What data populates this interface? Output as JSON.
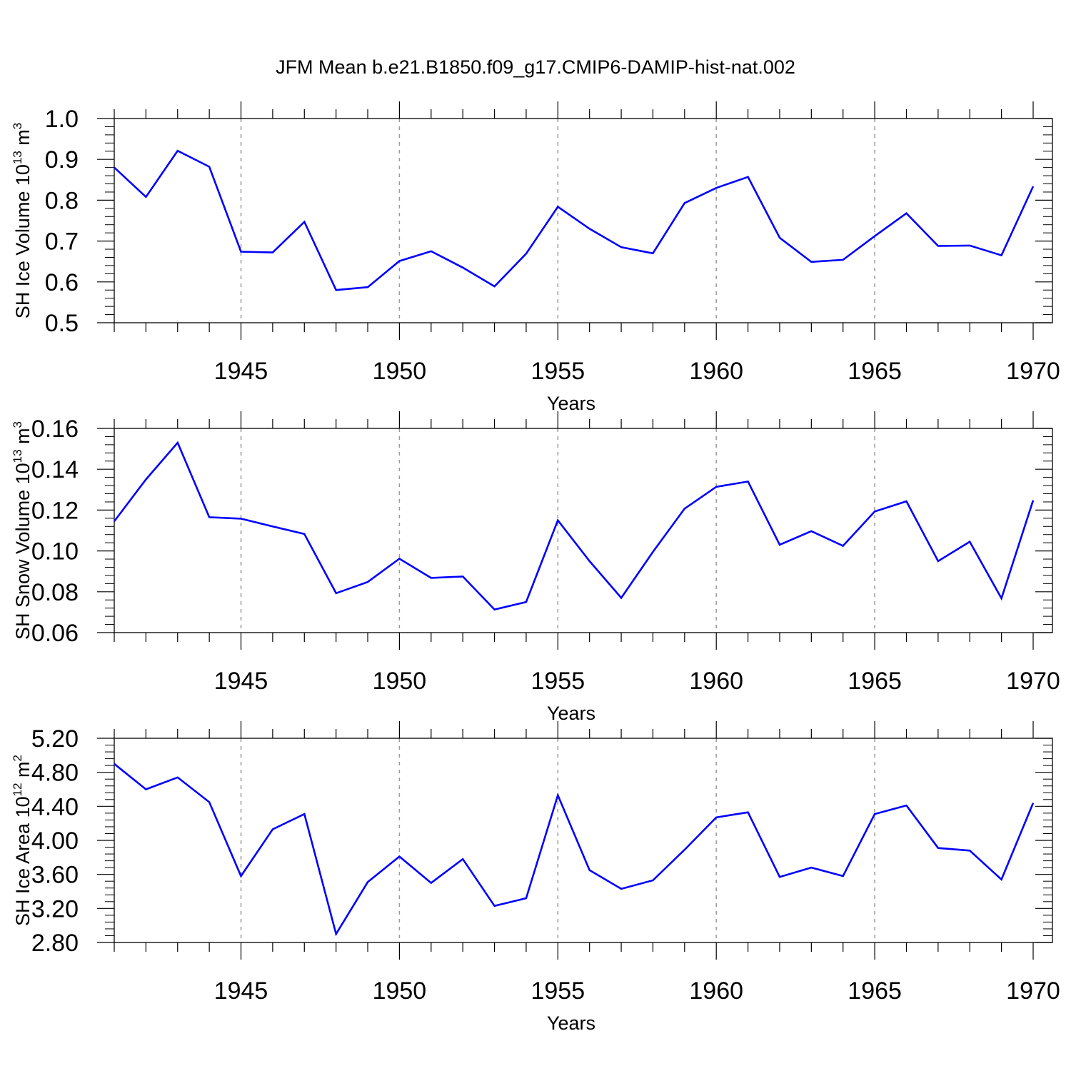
{
  "figure": {
    "title": "JFM Mean b.e21.B1850.f09_g17.CMIP6-DAMIP-hist-nat.002"
  },
  "colors": {
    "series_line": "#0000ff",
    "grid_line": "#9a9a9a",
    "axis": "#000000"
  },
  "chart_data": [
    {
      "type": "line",
      "xlabel": "Years",
      "ylabel_main": "SH Ice Volume 10",
      "ylabel_exponent": "13",
      "ylabel_unit": " m",
      "ylabel_unit_exponent": "3",
      "xlim": [
        1941,
        1970
      ],
      "ylim": [
        0.5,
        1.0
      ],
      "xticks": [
        1945,
        1950,
        1955,
        1960,
        1965,
        1970
      ],
      "xtick_labels": [
        "1945",
        "1950",
        "1955",
        "1960",
        "1965",
        "1970"
      ],
      "yticks": [
        0.5,
        0.6,
        0.7,
        0.8,
        0.9,
        1.0
      ],
      "ytick_labels": [
        "0.5",
        "0.6",
        "0.7",
        "0.8",
        "0.9",
        "1.0"
      ],
      "grid": "dashed vertical at labeled years",
      "x": [
        1941,
        1942,
        1943,
        1944,
        1945,
        1946,
        1947,
        1948,
        1949,
        1950,
        1951,
        1952,
        1953,
        1954,
        1955,
        1956,
        1957,
        1958,
        1959,
        1960,
        1961,
        1962,
        1963,
        1964,
        1965,
        1966,
        1967,
        1968,
        1969,
        1970
      ],
      "values": [
        0.88,
        0.808,
        0.921,
        0.882,
        0.674,
        0.672,
        0.747,
        0.58,
        0.587,
        0.651,
        0.675,
        0.635,
        0.589,
        0.669,
        0.784,
        0.73,
        0.685,
        0.67,
        0.793,
        0.83,
        0.857,
        0.708,
        0.649,
        0.654,
        0.712,
        0.768,
        0.688,
        0.689,
        0.665,
        0.834
      ]
    },
    {
      "type": "line",
      "xlabel": "Years",
      "ylabel_main": "SH Snow Volume 10",
      "ylabel_exponent": "13",
      "ylabel_unit": " m",
      "ylabel_unit_exponent": "3",
      "xlim": [
        1941,
        1970
      ],
      "ylim": [
        0.06,
        0.16
      ],
      "xticks": [
        1945,
        1950,
        1955,
        1960,
        1965,
        1970
      ],
      "xtick_labels": [
        "1945",
        "1950",
        "1955",
        "1960",
        "1965",
        "1970"
      ],
      "yticks": [
        0.06,
        0.08,
        0.1,
        0.12,
        0.14,
        0.16
      ],
      "ytick_labels": [
        "0.06",
        "0.08",
        "0.10",
        "0.12",
        "0.14",
        "0.16"
      ],
      "grid": "dashed vertical at labeled years",
      "x": [
        1941,
        1942,
        1943,
        1944,
        1945,
        1946,
        1947,
        1948,
        1949,
        1950,
        1951,
        1952,
        1953,
        1954,
        1955,
        1956,
        1957,
        1958,
        1959,
        1960,
        1961,
        1962,
        1963,
        1964,
        1965,
        1966,
        1967,
        1968,
        1969,
        1970
      ],
      "values": [
        0.1145,
        0.135,
        0.153,
        0.1165,
        0.1158,
        0.112,
        0.1083,
        0.0793,
        0.0848,
        0.0962,
        0.0868,
        0.0875,
        0.0713,
        0.075,
        0.115,
        0.095,
        0.077,
        0.0995,
        0.1207,
        0.1314,
        0.134,
        0.103,
        0.1097,
        0.1025,
        0.1193,
        0.1243,
        0.095,
        0.1045,
        0.0768,
        0.1248
      ]
    },
    {
      "type": "line",
      "xlabel": "Years",
      "ylabel_main": "SH Ice Area 10",
      "ylabel_exponent": "12",
      "ylabel_unit": " m",
      "ylabel_unit_exponent": "2",
      "xlim": [
        1941,
        1970
      ],
      "ylim": [
        2.8,
        5.2
      ],
      "xticks": [
        1945,
        1950,
        1955,
        1960,
        1965,
        1970
      ],
      "xtick_labels": [
        "1945",
        "1950",
        "1955",
        "1960",
        "1965",
        "1970"
      ],
      "yticks": [
        2.8,
        3.2,
        3.6,
        4.0,
        4.4,
        4.8,
        5.2
      ],
      "ytick_labels": [
        "2.80",
        "3.20",
        "3.60",
        "4.00",
        "4.40",
        "4.80",
        "5.20"
      ],
      "grid": "dashed vertical at labeled years",
      "x": [
        1941,
        1942,
        1943,
        1944,
        1945,
        1946,
        1947,
        1948,
        1949,
        1950,
        1951,
        1952,
        1953,
        1954,
        1955,
        1956,
        1957,
        1958,
        1959,
        1960,
        1961,
        1962,
        1963,
        1964,
        1965,
        1966,
        1967,
        1968,
        1969,
        1970
      ],
      "values": [
        4.9,
        4.6,
        4.74,
        4.45,
        3.58,
        4.13,
        4.31,
        2.9,
        3.51,
        3.81,
        3.5,
        3.78,
        3.23,
        3.32,
        4.53,
        3.65,
        3.43,
        3.53,
        3.89,
        4.27,
        4.33,
        3.57,
        3.68,
        3.58,
        4.31,
        4.41,
        3.91,
        3.88,
        3.54,
        4.44
      ]
    }
  ]
}
